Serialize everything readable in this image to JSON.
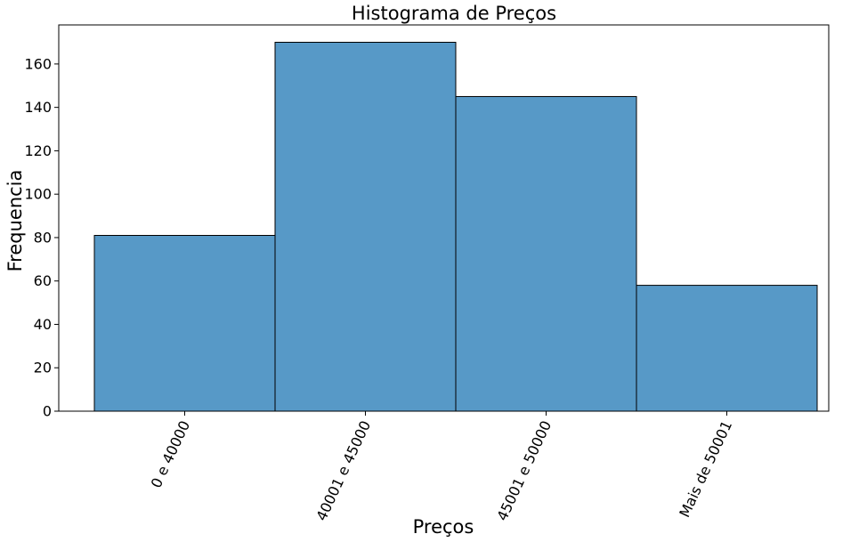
{
  "chart_data": {
    "type": "bar",
    "title": "Histograma de Preços",
    "xlabel": "Preços",
    "ylabel": "Frequencia",
    "categories": [
      "0 e 40000",
      "40001 e 45000",
      "45001 e 50000",
      "Mais de 50001"
    ],
    "values": [
      81,
      170,
      145,
      58
    ],
    "ylim": [
      0,
      178
    ],
    "yticks": [
      0,
      20,
      40,
      60,
      80,
      100,
      120,
      140,
      160
    ],
    "grid": false,
    "bar_color": "#5799c7",
    "edge_color": "#000000",
    "xtick_rotation_deg": 65
  }
}
